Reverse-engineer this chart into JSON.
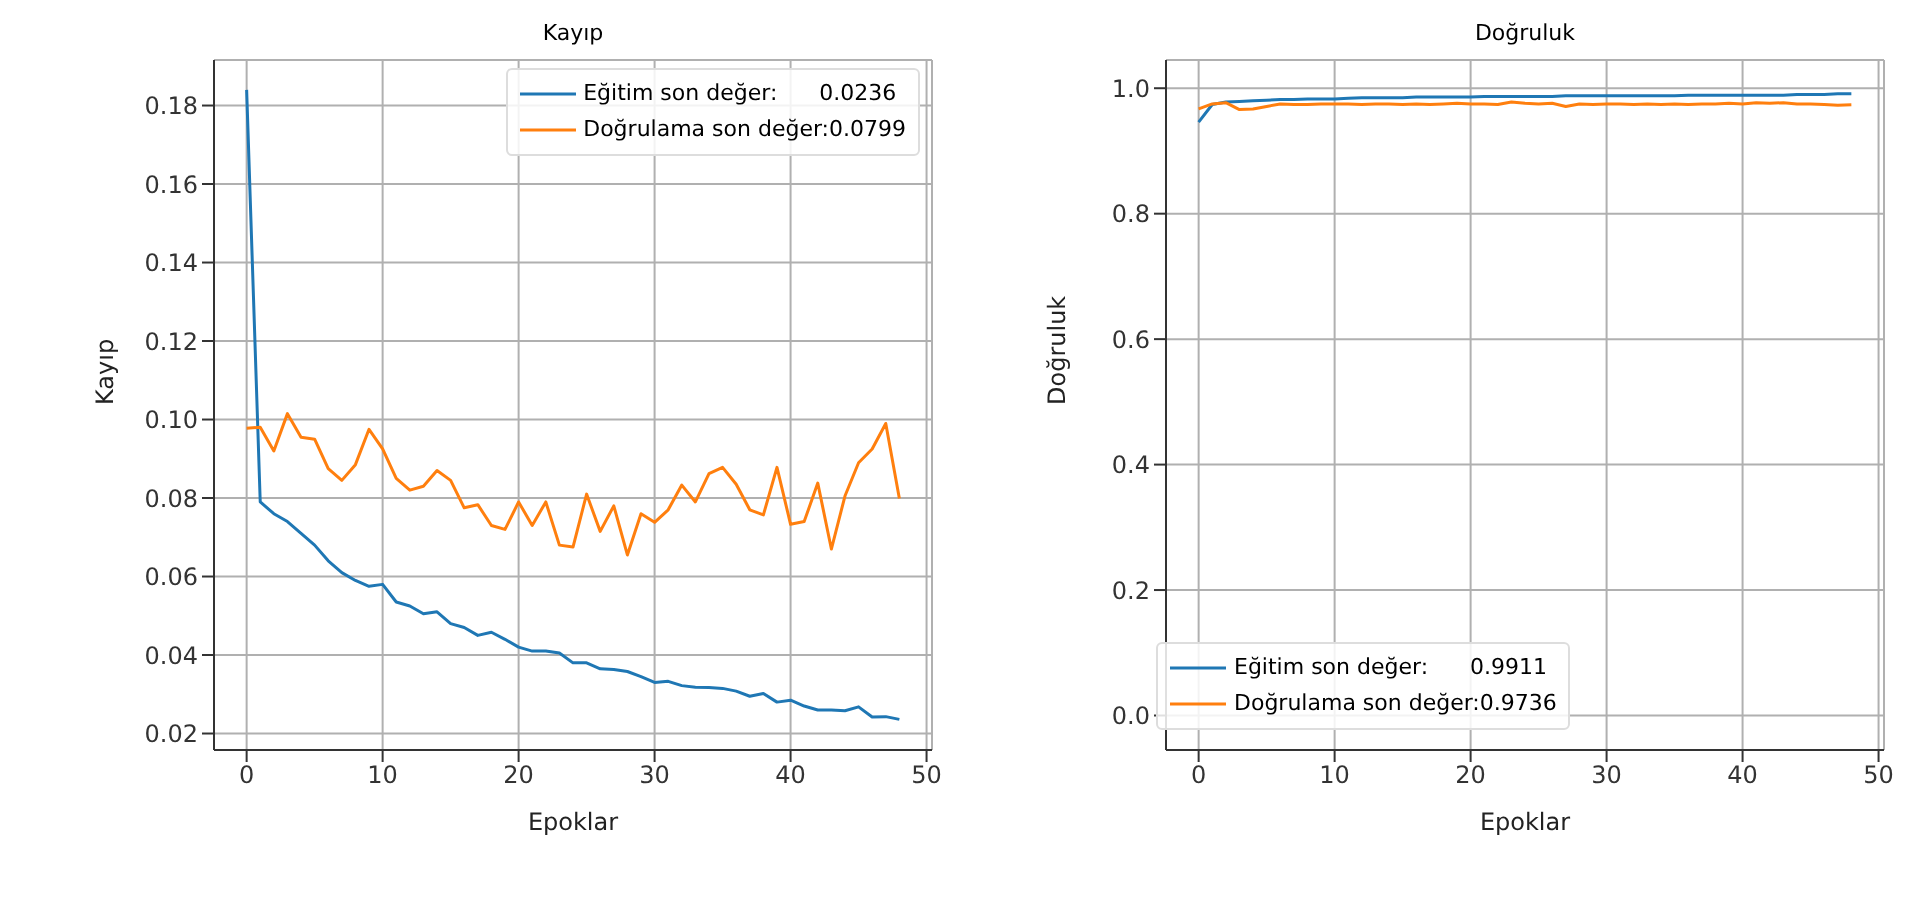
{
  "chart_data": [
    {
      "type": "line",
      "title": "Kayıp",
      "xlabel": "Epoklar",
      "ylabel": "Kayıp",
      "x": [
        0,
        1,
        2,
        3,
        4,
        5,
        6,
        7,
        8,
        9,
        10,
        11,
        12,
        13,
        14,
        15,
        16,
        17,
        18,
        19,
        20,
        21,
        22,
        23,
        24,
        25,
        26,
        27,
        28,
        29,
        30,
        31,
        32,
        33,
        34,
        35,
        36,
        37,
        38,
        39,
        40,
        41,
        42,
        43,
        44,
        45,
        46,
        47,
        48
      ],
      "series": [
        {
          "name": "Eğitim son değer:      0.0236",
          "color": "#1f77b4",
          "values": [
            0.184,
            0.079,
            0.076,
            0.074,
            0.071,
            0.068,
            0.064,
            0.061,
            0.059,
            0.0575,
            0.058,
            0.0535,
            0.0525,
            0.0505,
            0.051,
            0.048,
            0.047,
            0.045,
            0.0458,
            0.044,
            0.042,
            0.041,
            0.041,
            0.0405,
            0.038,
            0.038,
            0.0365,
            0.0363,
            0.0358,
            0.0345,
            0.033,
            0.0333,
            0.0322,
            0.0318,
            0.0317,
            0.0315,
            0.0308,
            0.0295,
            0.0302,
            0.028,
            0.0285,
            0.027,
            0.026,
            0.026,
            0.0258,
            0.0268,
            0.0242,
            0.0243,
            0.0236
          ]
        },
        {
          "name": "Doğrulama son değer:0.0799",
          "color": "#ff7f0e",
          "values": [
            0.0978,
            0.098,
            0.092,
            0.1015,
            0.0955,
            0.095,
            0.0875,
            0.0845,
            0.0885,
            0.0975,
            0.0925,
            0.085,
            0.082,
            0.083,
            0.087,
            0.0845,
            0.0775,
            0.0783,
            0.073,
            0.072,
            0.079,
            0.073,
            0.079,
            0.068,
            0.0675,
            0.081,
            0.0715,
            0.078,
            0.0655,
            0.076,
            0.0738,
            0.077,
            0.0833,
            0.079,
            0.0862,
            0.0878,
            0.0835,
            0.077,
            0.0757,
            0.0878,
            0.0733,
            0.074,
            0.0838,
            0.067,
            0.0805,
            0.089,
            0.0925,
            0.099,
            0.0799
          ]
        }
      ],
      "xlim": [
        -2.4,
        50.4
      ],
      "xticks": [
        0,
        10,
        20,
        30,
        40,
        50
      ],
      "ylim": [
        0.0158,
        0.1916
      ],
      "yticks": [
        0.02,
        0.04,
        0.06,
        0.08,
        {
          "value": 0.1,
          "label": "0.10"
        },
        0.12,
        0.14,
        0.16,
        0.18
      ],
      "grid": true,
      "legend": "top right",
      "marker": "none",
      "line_style": "solid"
    },
    {
      "type": "line",
      "title": "Doğruluk",
      "xlabel": "Epoklar",
      "ylabel": "Doğruluk",
      "x": [
        0,
        1,
        2,
        3,
        4,
        5,
        6,
        7,
        8,
        9,
        10,
        11,
        12,
        13,
        14,
        15,
        16,
        17,
        18,
        19,
        20,
        21,
        22,
        23,
        24,
        25,
        26,
        27,
        28,
        29,
        30,
        31,
        32,
        33,
        34,
        35,
        36,
        37,
        38,
        39,
        40,
        41,
        42,
        43,
        44,
        45,
        46,
        47,
        48
      ],
      "series": [
        {
          "name": "Eğitim son değer:      0.9911",
          "color": "#1f77b4",
          "values": [
            0.946,
            0.974,
            0.978,
            0.979,
            0.98,
            0.981,
            0.982,
            0.982,
            0.983,
            0.983,
            0.983,
            0.984,
            0.985,
            0.985,
            0.985,
            0.985,
            0.986,
            0.986,
            0.986,
            0.986,
            0.986,
            0.987,
            0.987,
            0.987,
            0.987,
            0.987,
            0.987,
            0.988,
            0.988,
            0.988,
            0.988,
            0.988,
            0.988,
            0.988,
            0.988,
            0.988,
            0.989,
            0.989,
            0.989,
            0.989,
            0.989,
            0.989,
            0.989,
            0.989,
            0.99,
            0.99,
            0.99,
            0.991,
            0.9911
          ]
        },
        {
          "name": "Doğrulama son değer:0.9736",
          "color": "#ff7f0e",
          "values": [
            0.967,
            0.975,
            0.977,
            0.966,
            0.967,
            0.971,
            0.975,
            0.974,
            0.974,
            0.975,
            0.975,
            0.975,
            0.974,
            0.975,
            0.975,
            0.974,
            0.975,
            0.974,
            0.975,
            0.976,
            0.975,
            0.975,
            0.974,
            0.978,
            0.976,
            0.975,
            0.976,
            0.971,
            0.975,
            0.974,
            0.975,
            0.975,
            0.974,
            0.975,
            0.974,
            0.975,
            0.974,
            0.975,
            0.975,
            0.976,
            0.975,
            0.977,
            0.976,
            0.977,
            0.975,
            0.975,
            0.974,
            0.973,
            0.9736
          ]
        }
      ],
      "xlim": [
        -2.4,
        50.4
      ],
      "xticks": [
        0,
        10,
        20,
        30,
        40,
        50
      ],
      "ylim": [
        -0.055,
        1.045
      ],
      "yticks": [
        {
          "value": 0,
          "label": "0.0"
        },
        0.2,
        0.4,
        0.6,
        0.8,
        {
          "value": 1,
          "label": "1.0"
        }
      ],
      "grid": true,
      "legend": "bottom left",
      "marker": "none",
      "line_style": "solid"
    }
  ]
}
